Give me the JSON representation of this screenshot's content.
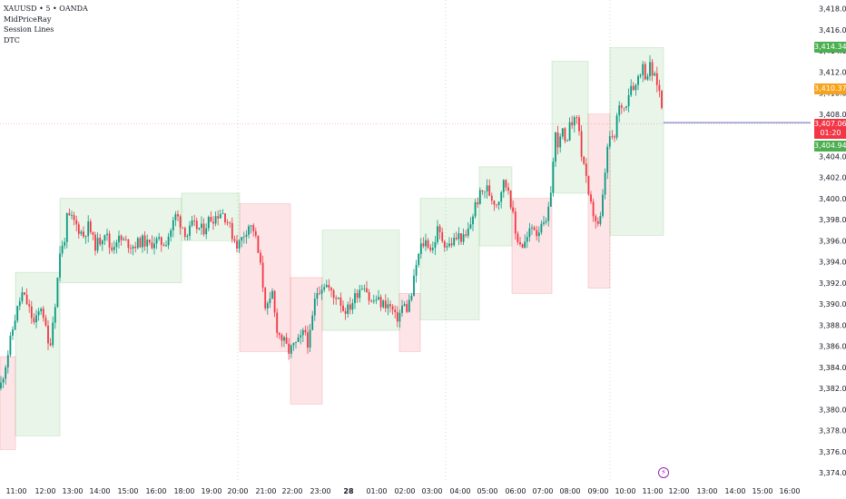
{
  "legend": {
    "symbol_line": "XAUUSD • 5 • OANDA",
    "indicators": [
      "MidPriceRay",
      "Session Lines",
      "DTC"
    ]
  },
  "chart_data": {
    "type": "candlestick",
    "symbol": "XAUUSD",
    "interval": "5",
    "source": "OANDA",
    "ylim": [
      3372.5,
      3419
    ],
    "y_ticks": [
      "3,418.000",
      "3,416.000",
      "3,414.000",
      "3,412.000",
      "3,410.000",
      "3,408.000",
      "3,406.000",
      "3,404.000",
      "3,402.000",
      "3,400.000",
      "3,398.000",
      "3,396.000",
      "3,394.000",
      "3,392.000",
      "3,390.000",
      "3,388.000",
      "3,386.000",
      "3,384.000",
      "3,382.000",
      "3,380.000",
      "3,378.000",
      "3,376.000",
      "3,374.000"
    ],
    "x_ticks": [
      "11:00",
      "12:00",
      "13:00",
      "14:00",
      "15:00",
      "16:00",
      "18:00",
      "19:00",
      "20:00",
      "21:00",
      "22:00",
      "23:00",
      "28",
      "01:00",
      "02:00",
      "03:00",
      "04:00",
      "05:00",
      "06:00",
      "07:00",
      "08:00",
      "09:00",
      "10:00",
      "11:00",
      "12:00",
      "13:00",
      "14:00",
      "15:00",
      "16:00"
    ],
    "price_tags": [
      {
        "label": "3,414.348",
        "value": 3414.348,
        "color": "#4caf50"
      },
      {
        "label": "3,410.372",
        "value": 3410.372,
        "color": "#f7a21b"
      },
      {
        "label": "3,407.060",
        "value": 3407.06,
        "color": "#f23645"
      },
      {
        "label": "01:20",
        "value": 3406.2,
        "color": "#f23645"
      },
      {
        "label": "3,404.941",
        "value": 3404.941,
        "color": "#4caf50"
      }
    ],
    "current_price": 3407.06,
    "anchors": [
      [
        0,
        3382.0
      ],
      [
        8,
        3385.0
      ],
      [
        16,
        3388.5
      ],
      [
        24,
        3391.0
      ],
      [
        30,
        3390.0
      ],
      [
        38,
        3388.0
      ],
      [
        46,
        3390.0
      ],
      [
        54,
        3385.5
      ],
      [
        62,
        3391.0
      ],
      [
        66,
        3395.0
      ],
      [
        70,
        3395.5
      ],
      [
        74,
        3398.2
      ],
      [
        80,
        3398.0
      ],
      [
        86,
        3397.2
      ],
      [
        92,
        3396.5
      ],
      [
        98,
        3397.5
      ],
      [
        104,
        3395.5
      ],
      [
        110,
        3396.0
      ],
      [
        116,
        3397.0
      ],
      [
        122,
        3395.0
      ],
      [
        128,
        3396.2
      ],
      [
        134,
        3396.0
      ],
      [
        140,
        3395.8
      ],
      [
        146,
        3395.5
      ],
      [
        152,
        3395.8
      ],
      [
        158,
        3396.0
      ],
      [
        164,
        3395.5
      ],
      [
        170,
        3396.0
      ],
      [
        176,
        3395.8
      ],
      [
        182,
        3395.8
      ],
      [
        188,
        3397.0
      ],
      [
        194,
        3398.5
      ],
      [
        200,
        3397.5
      ],
      [
        206,
        3396.5
      ],
      [
        212,
        3397.5
      ],
      [
        218,
        3397.2
      ],
      [
        224,
        3397.0
      ],
      [
        230,
        3398.0
      ],
      [
        236,
        3398.2
      ],
      [
        244,
        3398.8
      ],
      [
        250,
        3398.0
      ],
      [
        256,
        3396.5
      ],
      [
        262,
        3395.5
      ],
      [
        268,
        3396.5
      ],
      [
        274,
        3397.5
      ],
      [
        280,
        3397.0
      ],
      [
        284,
        3395.0
      ],
      [
        288,
        3393.0
      ],
      [
        292,
        3390.0
      ],
      [
        296,
        3389.5
      ],
      [
        300,
        3391.0
      ],
      [
        304,
        3388.0
      ],
      [
        308,
        3387.0
      ],
      [
        312,
        3386.5
      ],
      [
        318,
        3385.5
      ],
      [
        324,
        3386.0
      ],
      [
        330,
        3386.5
      ],
      [
        336,
        3387.5
      ],
      [
        340,
        3386.0
      ],
      [
        344,
        3388.5
      ],
      [
        348,
        3391.0
      ],
      [
        352,
        3391.5
      ],
      [
        358,
        3392.0
      ],
      [
        362,
        3391.5
      ],
      [
        368,
        3390.5
      ],
      [
        372,
        3391.0
      ],
      [
        378,
        3389.5
      ],
      [
        384,
        3389.5
      ],
      [
        390,
        3390.5
      ],
      [
        396,
        3391.5
      ],
      [
        402,
        3392.0
      ],
      [
        408,
        3390.0
      ],
      [
        414,
        3390.5
      ],
      [
        420,
        3390.0
      ],
      [
        426,
        3390.0
      ],
      [
        432,
        3389.5
      ],
      [
        436,
        3388.5
      ],
      [
        440,
        3389.0
      ],
      [
        444,
        3390.0
      ],
      [
        448,
        3389.5
      ],
      [
        454,
        3391.0
      ],
      [
        458,
        3393.5
      ],
      [
        464,
        3395.5
      ],
      [
        470,
        3396.0
      ],
      [
        476,
        3395.0
      ],
      [
        482,
        3397.0
      ],
      [
        488,
        3396.0
      ],
      [
        494,
        3395.5
      ],
      [
        500,
        3396.0
      ],
      [
        506,
        3396.5
      ],
      [
        512,
        3396.0
      ],
      [
        518,
        3397.5
      ],
      [
        524,
        3399.5
      ],
      [
        530,
        3400.5
      ],
      [
        536,
        3401.0
      ],
      [
        542,
        3400.0
      ],
      [
        548,
        3399.5
      ],
      [
        554,
        3401.5
      ],
      [
        560,
        3401.0
      ],
      [
        564,
        3399.0
      ],
      [
        568,
        3396.5
      ],
      [
        572,
        3396.0
      ],
      [
        576,
        3395.5
      ],
      [
        580,
        3396.0
      ],
      [
        584,
        3397.0
      ],
      [
        588,
        3397.5
      ],
      [
        592,
        3396.5
      ],
      [
        596,
        3398.0
      ],
      [
        600,
        3397.0
      ],
      [
        604,
        3398.5
      ],
      [
        608,
        3402.0
      ],
      [
        612,
        3406.0
      ],
      [
        616,
        3405.0
      ],
      [
        620,
        3406.5
      ],
      [
        624,
        3404.0
      ],
      [
        628,
        3408.0
      ],
      [
        632,
        3407.0
      ],
      [
        636,
        3408.0
      ],
      [
        640,
        3404.5
      ],
      [
        644,
        3403.0
      ],
      [
        648,
        3400.0
      ],
      [
        652,
        3399.0
      ],
      [
        656,
        3398.0
      ],
      [
        660,
        3397.0
      ],
      [
        664,
        3400.0
      ],
      [
        668,
        3404.0
      ],
      [
        672,
        3406.0
      ],
      [
        676,
        3405.0
      ],
      [
        680,
        3408.0
      ],
      [
        684,
        3409.0
      ],
      [
        688,
        3408.5
      ],
      [
        692,
        3410.0
      ],
      [
        696,
        3411.0
      ],
      [
        700,
        3410.5
      ],
      [
        704,
        3412.0
      ],
      [
        708,
        3412.5
      ],
      [
        712,
        3411.5
      ],
      [
        716,
        3412.5
      ],
      [
        720,
        3411.5
      ],
      [
        724,
        3411.0
      ],
      [
        728,
        3409.5
      ],
      [
        731,
        3407.06
      ]
    ],
    "zones": [
      {
        "x0": 0,
        "x1": 17,
        "hi": 3385.0,
        "lo": 3376.2,
        "dir": "down"
      },
      {
        "x0": 17,
        "x1": 66,
        "hi": 3393.0,
        "lo": 3377.5,
        "dir": "up"
      },
      {
        "x0": 66,
        "x1": 200,
        "hi": 3400.0,
        "lo": 3392.0,
        "dir": "up"
      },
      {
        "x0": 200,
        "x1": 264,
        "hi": 3400.5,
        "lo": 3396.0,
        "dir": "up"
      },
      {
        "x0": 264,
        "x1": 320,
        "hi": 3399.5,
        "lo": 3385.5,
        "dir": "down"
      },
      {
        "x0": 320,
        "x1": 355,
        "hi": 3392.5,
        "lo": 3380.5,
        "dir": "down"
      },
      {
        "x0": 355,
        "x1": 440,
        "hi": 3397.0,
        "lo": 3387.5,
        "dir": "up"
      },
      {
        "x0": 440,
        "x1": 463,
        "hi": 3391.0,
        "lo": 3385.5,
        "dir": "down"
      },
      {
        "x0": 463,
        "x1": 528,
        "hi": 3400.0,
        "lo": 3388.5,
        "dir": "up"
      },
      {
        "x0": 528,
        "x1": 564,
        "hi": 3403.0,
        "lo": 3395.5,
        "dir": "up"
      },
      {
        "x0": 564,
        "x1": 608,
        "hi": 3400.0,
        "lo": 3391.0,
        "dir": "down"
      },
      {
        "x0": 608,
        "x1": 648,
        "hi": 3413.0,
        "lo": 3400.5,
        "dir": "up"
      },
      {
        "x0": 648,
        "x1": 672,
        "hi": 3408.0,
        "lo": 3391.5,
        "dir": "down"
      },
      {
        "x0": 672,
        "x1": 731,
        "hi": 3414.3,
        "lo": 3396.5,
        "dir": "up"
      }
    ]
  }
}
